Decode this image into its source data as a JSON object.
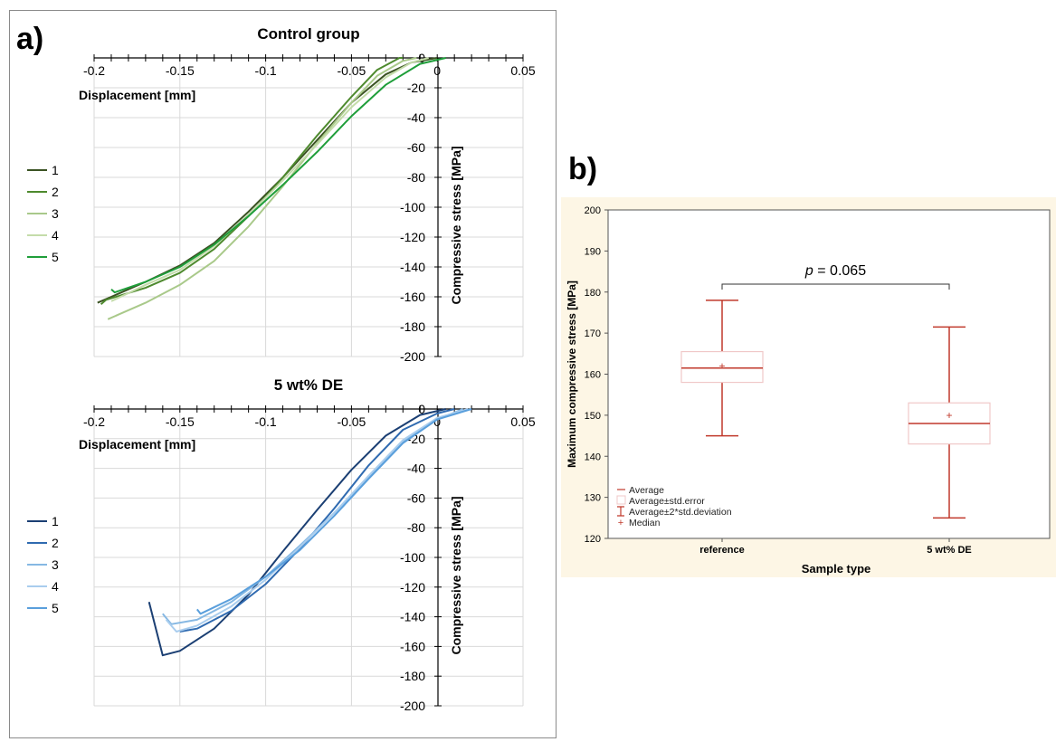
{
  "figure": {
    "panel_a_label": "a)",
    "panel_b_label": "b)"
  },
  "chart_data": [
    {
      "type": "line",
      "panel": "a",
      "title": "Control group",
      "xlabel": "Displacement [mm]",
      "ylabel": "Compressive stress [MPa]",
      "xlim": [
        -0.2,
        0.05
      ],
      "ylim": [
        -200,
        0
      ],
      "x_ticks": [
        -0.2,
        -0.15,
        -0.1,
        -0.05,
        0,
        0.05
      ],
      "x_tick_labels": [
        "-0.2",
        "-0.15",
        "-0.1",
        "-0.05",
        "0",
        "0.05"
      ],
      "y_ticks": [
        0,
        -20,
        -40,
        -60,
        -80,
        -100,
        -120,
        -140,
        -160,
        -180,
        -200
      ],
      "y_tick_labels": [
        "0",
        "-20",
        "-40",
        "-60",
        "-80",
        "-100",
        "-120",
        "-140",
        "-160",
        "-180",
        "-200"
      ],
      "grid": true,
      "legend_position": "left",
      "series": [
        {
          "name": "1",
          "color": "#3b5323",
          "points": [
            [
              -0.198,
              -164
            ],
            [
              -0.19,
              -160
            ],
            [
              -0.17,
              -150
            ],
            [
              -0.15,
              -139
            ],
            [
              -0.13,
              -124
            ],
            [
              -0.11,
              -103
            ],
            [
              -0.09,
              -80
            ],
            [
              -0.07,
              -55
            ],
            [
              -0.05,
              -30
            ],
            [
              -0.03,
              -11
            ],
            [
              -0.015,
              -3
            ],
            [
              0,
              0
            ]
          ]
        },
        {
          "name": "2",
          "color": "#4e8a2e",
          "points": [
            [
              -0.196,
              -165
            ],
            [
              -0.193,
              -162
            ],
            [
              -0.17,
              -154
            ],
            [
              -0.15,
              -144
            ],
            [
              -0.13,
              -128
            ],
            [
              -0.11,
              -106
            ],
            [
              -0.09,
              -80
            ],
            [
              -0.07,
              -52
            ],
            [
              -0.05,
              -26
            ],
            [
              -0.035,
              -8
            ],
            [
              -0.022,
              0
            ],
            [
              -0.02,
              0
            ]
          ]
        },
        {
          "name": "3",
          "color": "#a9c98a",
          "points": [
            [
              -0.192,
              -175
            ],
            [
              -0.186,
              -172
            ],
            [
              -0.17,
              -164
            ],
            [
              -0.15,
              -152
            ],
            [
              -0.13,
              -136
            ],
            [
              -0.11,
              -113
            ],
            [
              -0.09,
              -86
            ],
            [
              -0.07,
              -57
            ],
            [
              -0.05,
              -30
            ],
            [
              -0.035,
              -12
            ],
            [
              -0.02,
              -2
            ],
            [
              -0.012,
              0
            ]
          ]
        },
        {
          "name": "4",
          "color": "#c4dcaa",
          "points": [
            [
              -0.19,
              -163
            ],
            [
              -0.17,
              -152
            ],
            [
              -0.15,
              -142
            ],
            [
              -0.13,
              -126
            ],
            [
              -0.11,
              -105
            ],
            [
              -0.09,
              -82
            ],
            [
              -0.07,
              -58
            ],
            [
              -0.05,
              -33
            ],
            [
              -0.03,
              -13
            ],
            [
              -0.015,
              -3
            ],
            [
              -0.005,
              0
            ]
          ]
        },
        {
          "name": "5",
          "color": "#1f9e3a",
          "points": [
            [
              -0.19,
              -155
            ],
            [
              -0.188,
              -157
            ],
            [
              -0.17,
              -150
            ],
            [
              -0.15,
              -140
            ],
            [
              -0.13,
              -125
            ],
            [
              -0.11,
              -106
            ],
            [
              -0.09,
              -85
            ],
            [
              -0.07,
              -63
            ],
            [
              -0.05,
              -39
            ],
            [
              -0.03,
              -18
            ],
            [
              -0.01,
              -4
            ],
            [
              0.005,
              0
            ]
          ]
        }
      ]
    },
    {
      "type": "line",
      "panel": "a",
      "title": "5 wt% DE",
      "xlabel": "Displacement [mm]",
      "ylabel": "Compressive stress [MPa]",
      "xlim": [
        -0.2,
        0.05
      ],
      "ylim": [
        -200,
        0
      ],
      "x_ticks": [
        -0.2,
        -0.15,
        -0.1,
        -0.05,
        0,
        0.05
      ],
      "x_tick_labels": [
        "-0.2",
        "-0.15",
        "-0.1",
        "-0.05",
        "0",
        "0.05"
      ],
      "y_ticks": [
        0,
        -20,
        -40,
        -60,
        -80,
        -100,
        -120,
        -140,
        -160,
        -180,
        -200
      ],
      "y_tick_labels": [
        "0",
        "-20",
        "-40",
        "-60",
        "-80",
        "-100",
        "-120",
        "-140",
        "-160",
        "-180",
        "-200"
      ],
      "grid": true,
      "legend_position": "left",
      "series": [
        {
          "name": "1",
          "color": "#1b3f73",
          "points": [
            [
              -0.168,
              -130
            ],
            [
              -0.16,
              -166
            ],
            [
              -0.15,
              -163
            ],
            [
              -0.13,
              -148
            ],
            [
              -0.11,
              -125
            ],
            [
              -0.09,
              -96
            ],
            [
              -0.07,
              -68
            ],
            [
              -0.05,
              -41
            ],
            [
              -0.03,
              -18
            ],
            [
              -0.01,
              -4
            ],
            [
              0.005,
              0
            ]
          ]
        },
        {
          "name": "2",
          "color": "#2f6ab0",
          "points": [
            [
              -0.15,
              -150
            ],
            [
              -0.14,
              -148
            ],
            [
              -0.12,
              -136
            ],
            [
              -0.1,
              -118
            ],
            [
              -0.08,
              -94
            ],
            [
              -0.06,
              -67
            ],
            [
              -0.04,
              -38
            ],
            [
              -0.02,
              -14
            ],
            [
              0,
              -3
            ],
            [
              0.01,
              0
            ]
          ]
        },
        {
          "name": "3",
          "color": "#86b8e3",
          "points": [
            [
              -0.16,
              -138
            ],
            [
              -0.155,
              -145
            ],
            [
              -0.14,
              -142
            ],
            [
              -0.12,
              -130
            ],
            [
              -0.1,
              -113
            ],
            [
              -0.08,
              -92
            ],
            [
              -0.06,
              -70
            ],
            [
              -0.04,
              -46
            ],
            [
              -0.02,
              -22
            ],
            [
              0,
              -7
            ],
            [
              0.015,
              0
            ]
          ]
        },
        {
          "name": "4",
          "color": "#a9cdee",
          "points": [
            [
              -0.158,
              -142
            ],
            [
              -0.152,
              -150
            ],
            [
              -0.14,
              -146
            ],
            [
              -0.12,
              -133
            ],
            [
              -0.1,
              -115
            ],
            [
              -0.08,
              -93
            ],
            [
              -0.06,
              -70
            ],
            [
              -0.04,
              -45
            ],
            [
              -0.02,
              -21
            ],
            [
              0,
              -6
            ],
            [
              0.018,
              0
            ]
          ]
        },
        {
          "name": "5",
          "color": "#5a9fdc",
          "points": [
            [
              -0.14,
              -135
            ],
            [
              -0.138,
              -138
            ],
            [
              -0.12,
              -128
            ],
            [
              -0.1,
              -113
            ],
            [
              -0.08,
              -95
            ],
            [
              -0.06,
              -72
            ],
            [
              -0.04,
              -47
            ],
            [
              -0.02,
              -23
            ],
            [
              0,
              -7
            ],
            [
              0.02,
              0
            ]
          ]
        }
      ]
    },
    {
      "type": "box",
      "panel": "b",
      "xlabel": "Sample type",
      "ylabel": "Maximum compressive stress [MPa]",
      "categories": [
        "reference",
        "5 wt% DE"
      ],
      "ylim": [
        120,
        200
      ],
      "y_ticks": [
        120,
        130,
        140,
        150,
        160,
        170,
        180,
        190,
        200
      ],
      "y_tick_labels": [
        "120",
        "130",
        "140",
        "150",
        "160",
        "170",
        "180",
        "190",
        "200"
      ],
      "series": [
        {
          "name": "reference",
          "average": 161.5,
          "se_low": 158,
          "se_high": 165.5,
          "sd2_low": 145,
          "sd2_high": 178,
          "median": 162
        },
        {
          "name": "5 wt% DE",
          "average": 148,
          "se_low": 143,
          "se_high": 153,
          "sd2_low": 125,
          "sd2_high": 171.5,
          "median": 150
        }
      ],
      "annotation": {
        "p_label": "p",
        "p_value": " = 0.065"
      },
      "legend": [
        "Average",
        "Average±std.error",
        "Average±2*std.deviation",
        "Median"
      ],
      "legend_position": "bottom-left",
      "colors": {
        "line": "#c0392b",
        "box": "#f0c8c8",
        "background": "#fdf6e5"
      }
    }
  ]
}
